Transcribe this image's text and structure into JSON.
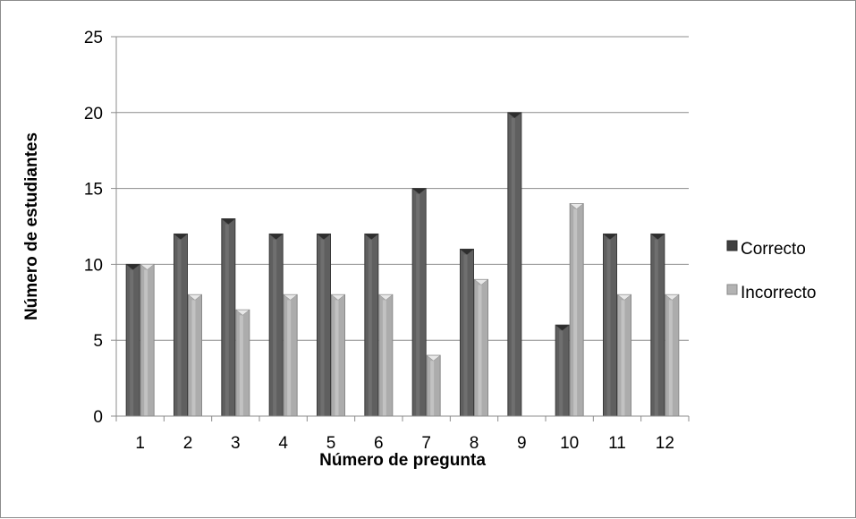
{
  "chart_data": {
    "type": "bar",
    "categories": [
      "1",
      "2",
      "3",
      "4",
      "5",
      "6",
      "7",
      "8",
      "9",
      "10",
      "11",
      "12"
    ],
    "series": [
      {
        "name": "Correcto",
        "values": [
          10,
          12,
          13,
          12,
          12,
          12,
          15,
          11,
          20,
          6,
          12,
          12
        ],
        "color": "#6b6b6b"
      },
      {
        "name": "Incorrecto",
        "values": [
          10,
          8,
          7,
          8,
          8,
          8,
          4,
          9,
          0,
          14,
          8,
          8
        ],
        "color": "#b3b3b3"
      }
    ],
    "xlabel": "Número de pregunta",
    "ylabel": "Número de estudiantes",
    "ylim": [
      0,
      25
    ],
    "yticks": [
      "0",
      "5",
      "10",
      "15",
      "20",
      "25"
    ],
    "grid": true,
    "legend_position": "right"
  }
}
